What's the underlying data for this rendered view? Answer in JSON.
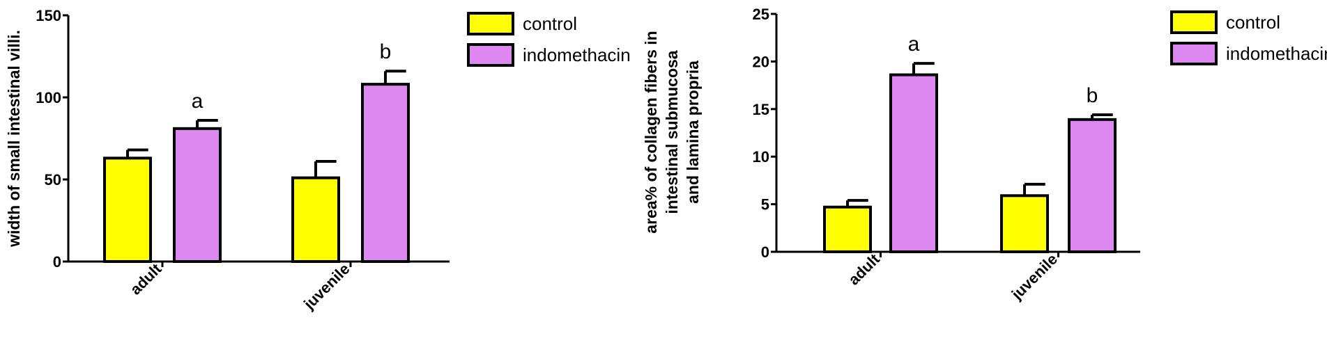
{
  "chart_data": [
    {
      "type": "bar",
      "categories": [
        "adult",
        "juvenile"
      ],
      "series": [
        {
          "name": "control",
          "values": [
            63,
            51
          ],
          "errors": [
            5,
            10
          ]
        },
        {
          "name": "indomethacin",
          "values": [
            81,
            108
          ],
          "errors": [
            5,
            8
          ]
        }
      ],
      "annotations": [
        "a",
        "b"
      ],
      "title": "",
      "xlabel": "",
      "ylabel": "width of small intestinal villi.",
      "ylim": [
        0,
        150
      ],
      "yticks": [
        "0",
        "50",
        "100",
        "150"
      ],
      "legend": "right",
      "grid": false
    },
    {
      "type": "bar",
      "categories": [
        "adult",
        "juvenile"
      ],
      "series": [
        {
          "name": "control",
          "values": [
            4.7,
            5.9
          ],
          "errors": [
            0.7,
            1.2
          ]
        },
        {
          "name": "indomethacin",
          "values": [
            18.6,
            13.9
          ],
          "errors": [
            1.2,
            0.5
          ]
        }
      ],
      "annotations": [
        "a",
        "b"
      ],
      "title": "",
      "xlabel": "",
      "ylabel_lines": [
        "area% of collagen fibers in",
        "intestinal submucosa",
        "and lamina propria"
      ],
      "ylim": [
        0,
        25
      ],
      "yticks": [
        "0",
        "5",
        "10",
        "15",
        "20",
        "25"
      ],
      "legend": "right",
      "grid": false
    }
  ],
  "colors": {
    "control": "#ffff00",
    "indomethacin": "#dd88f0",
    "outline": "#000000"
  }
}
